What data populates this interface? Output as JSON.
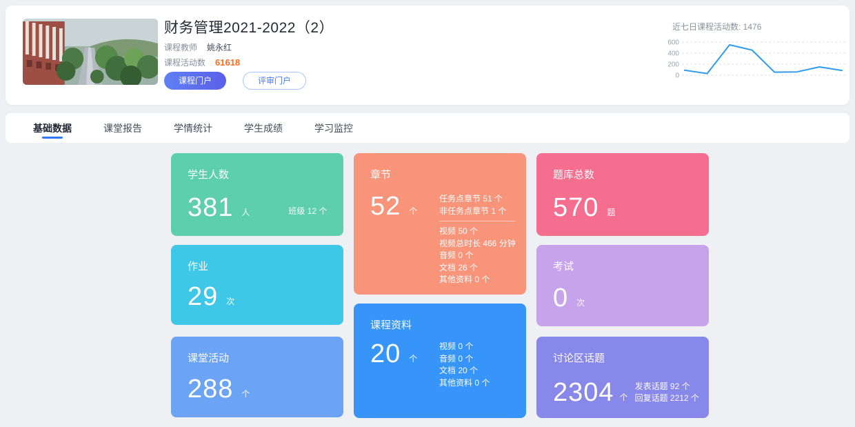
{
  "theme": {
    "page_bg": "#eef0f4",
    "accent_blue": "#2f7bf7",
    "orange": "#ff6c1f",
    "chart_line": "#2e9ceb"
  },
  "header": {
    "title": "财务管理2021-2022（2）",
    "teacher_label": "课程教师",
    "teacher_name": "姚永红",
    "activity_label": "课程活动数",
    "activity_value": "61618",
    "portal_button": "课程门户",
    "review_button": "评审门户"
  },
  "chart_data": {
    "type": "line",
    "title": "近七日课程活动数: 1476",
    "total": 1476,
    "x": [
      1,
      2,
      3,
      4,
      5,
      6,
      7,
      8
    ],
    "values": [
      90,
      30,
      550,
      455,
      55,
      60,
      150,
      86
    ],
    "ylim": [
      0,
      600
    ],
    "yticks": [
      600,
      400,
      200,
      0
    ],
    "ytick_labels": [
      "600",
      "400",
      "200",
      "0"
    ],
    "grid": "dashed horizontal",
    "legend": "none",
    "line_color": "#2e9ceb"
  },
  "tabs": [
    {
      "label": "基础数据",
      "active": true
    },
    {
      "label": "课堂报告",
      "active": false
    },
    {
      "label": "学情统计",
      "active": false
    },
    {
      "label": "学生成绩",
      "active": false
    },
    {
      "label": "学习监控",
      "active": false
    }
  ],
  "cards": {
    "students": {
      "title": "学生人数",
      "value": "381",
      "unit": "人",
      "extra": "班级 12 个",
      "color": "#5dd0ab"
    },
    "homework": {
      "title": "作业",
      "value": "29",
      "unit": "次",
      "color": "#3fc7e8"
    },
    "activities": {
      "title": "课堂活动",
      "value": "288",
      "unit": "个",
      "color": "#6ba3f5"
    },
    "chapters": {
      "title": "章节",
      "value": "52",
      "unit": "个",
      "color": "#f8947a",
      "details_top": [
        "任务点章节 51 个",
        "非任务点章节 1 个"
      ],
      "details_bottom": [
        "视频 50 个",
        "视频总时长 466 分钟",
        "音频 0 个",
        "文档 26 个",
        "其他资料 0 个"
      ]
    },
    "materials": {
      "title": "课程资料",
      "value": "20",
      "unit": "个",
      "color": "#3795fa",
      "details": [
        "视频 0 个",
        "音频 0 个",
        "文档 20 个",
        "其他资料 0 个"
      ]
    },
    "questions": {
      "title": "题库总数",
      "value": "570",
      "unit": "题",
      "color": "#f56d8f"
    },
    "exam": {
      "title": "考试",
      "value": "0",
      "unit": "次",
      "color": "#c7a3ec"
    },
    "discussion": {
      "title": "讨论区话题",
      "value": "2304",
      "unit": "个",
      "color": "#8788e9",
      "details": [
        "发表话题 92 个",
        "回复话题 2212 个"
      ]
    }
  }
}
